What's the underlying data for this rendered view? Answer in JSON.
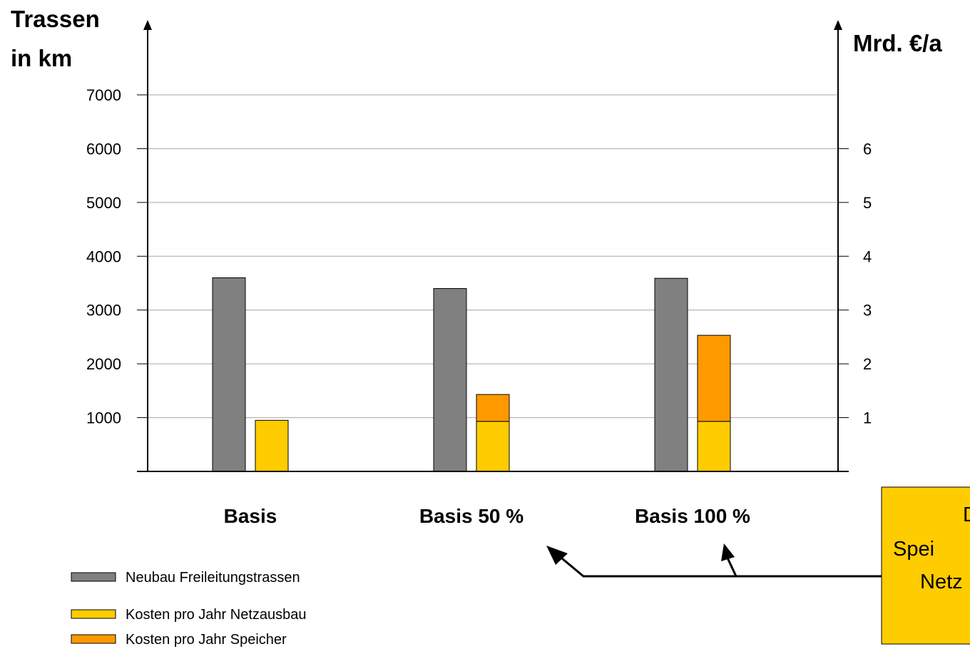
{
  "chart_data": {
    "type": "bar",
    "y_left_title_line1": "Trassen",
    "y_left_title_line2": "in km",
    "y_right_title": "Mrd. €/a",
    "left_ticks": [
      1000,
      2000,
      3000,
      4000,
      5000,
      6000,
      7000
    ],
    "right_ticks": [
      1,
      2,
      3,
      4,
      5,
      6
    ],
    "ylim_left": [
      0,
      7000
    ],
    "ylim_right": [
      0,
      7
    ],
    "grid": true,
    "categories": [
      "Basis",
      "Basis 50 %",
      "Basis 100 %"
    ],
    "series": [
      {
        "name": "Neubau Freileitungstrassen",
        "axis": "left",
        "color": "#808080",
        "values": [
          3600,
          3400,
          3590
        ]
      },
      {
        "name": "Kosten pro Jahr Netzausbau",
        "axis": "right",
        "color": "#FFCC00",
        "values": [
          0.95,
          0.93,
          0.93
        ]
      },
      {
        "name": "Kosten pro Jahr Speicher",
        "axis": "right",
        "color": "#FF9900",
        "values": [
          0,
          0.5,
          1.6
        ]
      }
    ],
    "legend_position": "bottom-left"
  },
  "callout": {
    "lines": [
      "D",
      "Spei",
      "Netz"
    ],
    "color": "#FFCC00"
  }
}
